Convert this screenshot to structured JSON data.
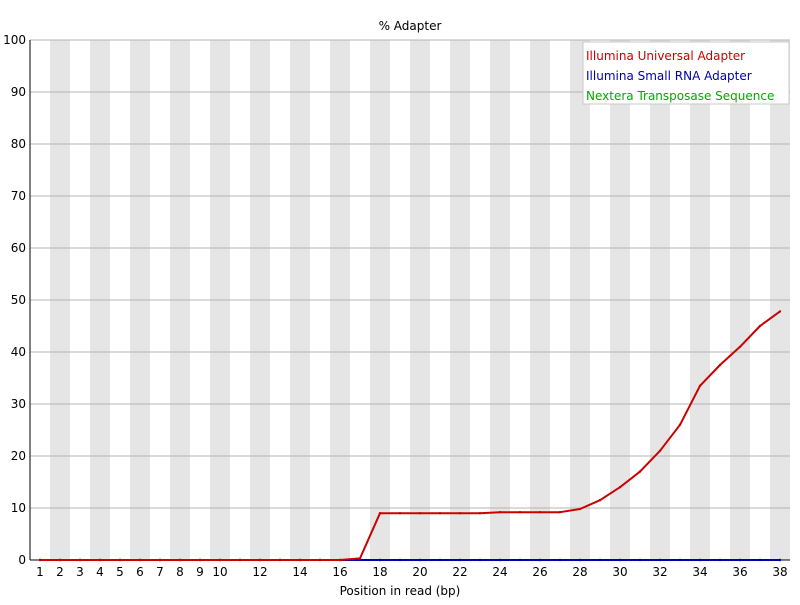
{
  "chart_data": {
    "type": "line",
    "title": "% Adapter",
    "xlabel": "Position in read (bp)",
    "ylabel": "",
    "ylim": [
      0,
      100
    ],
    "yticks": [
      "0",
      "10",
      "20",
      "30",
      "40",
      "50",
      "60",
      "70",
      "80",
      "90",
      "100"
    ],
    "x": [
      1,
      2,
      3,
      4,
      5,
      6,
      7,
      8,
      9,
      10,
      11,
      12,
      13,
      14,
      15,
      16,
      17,
      18,
      19,
      20,
      21,
      22,
      23,
      24,
      25,
      26,
      27,
      28,
      29,
      30,
      31,
      32,
      33,
      34,
      35,
      36,
      37,
      38
    ],
    "xtick_labels": [
      "1",
      "2",
      "3",
      "4",
      "5",
      "6",
      "7",
      "8",
      "9",
      "10",
      "12",
      "14",
      "16",
      "18",
      "20",
      "22",
      "24",
      "26",
      "28",
      "30",
      "32",
      "34",
      "36",
      "38"
    ],
    "xtick_positions": [
      1,
      2,
      3,
      4,
      5,
      6,
      7,
      8,
      9,
      10,
      12,
      14,
      16,
      18,
      20,
      22,
      24,
      26,
      28,
      30,
      32,
      34,
      36,
      38
    ],
    "grid": true,
    "alternating_bands": true,
    "legend_position": "top-right",
    "series": [
      {
        "name": "Illumina Universal Adapter",
        "color": "#cc0000",
        "values": [
          0,
          0,
          0,
          0,
          0,
          0,
          0,
          0,
          0,
          0,
          0,
          0,
          0,
          0,
          0,
          0,
          0.3,
          9.0,
          9.0,
          9.0,
          9.0,
          9.0,
          9.0,
          9.2,
          9.2,
          9.2,
          9.2,
          9.8,
          11.5,
          14.0,
          17.0,
          21.0,
          26.0,
          33.5,
          37.5,
          41.0,
          45.0,
          47.8
        ]
      },
      {
        "name": "Illumina Small RNA Adapter",
        "color": "#0000aa",
        "values": [
          0,
          0,
          0,
          0,
          0,
          0,
          0,
          0,
          0,
          0,
          0,
          0,
          0,
          0,
          0,
          0,
          0,
          0,
          0,
          0,
          0,
          0,
          0,
          0,
          0,
          0,
          0,
          0,
          0,
          0,
          0,
          0,
          0,
          0,
          0,
          0,
          0,
          0
        ]
      },
      {
        "name": "Nextera Transposase Sequence",
        "color": "#00aa00",
        "values": [
          0,
          0,
          0,
          0,
          0,
          0,
          0,
          0,
          0,
          0,
          0,
          0,
          0,
          0,
          0,
          0,
          0,
          0,
          0,
          0,
          0,
          0,
          0,
          0,
          0,
          0,
          0,
          0,
          0,
          0,
          0,
          0,
          0,
          0,
          0,
          0,
          0,
          0
        ]
      }
    ]
  }
}
